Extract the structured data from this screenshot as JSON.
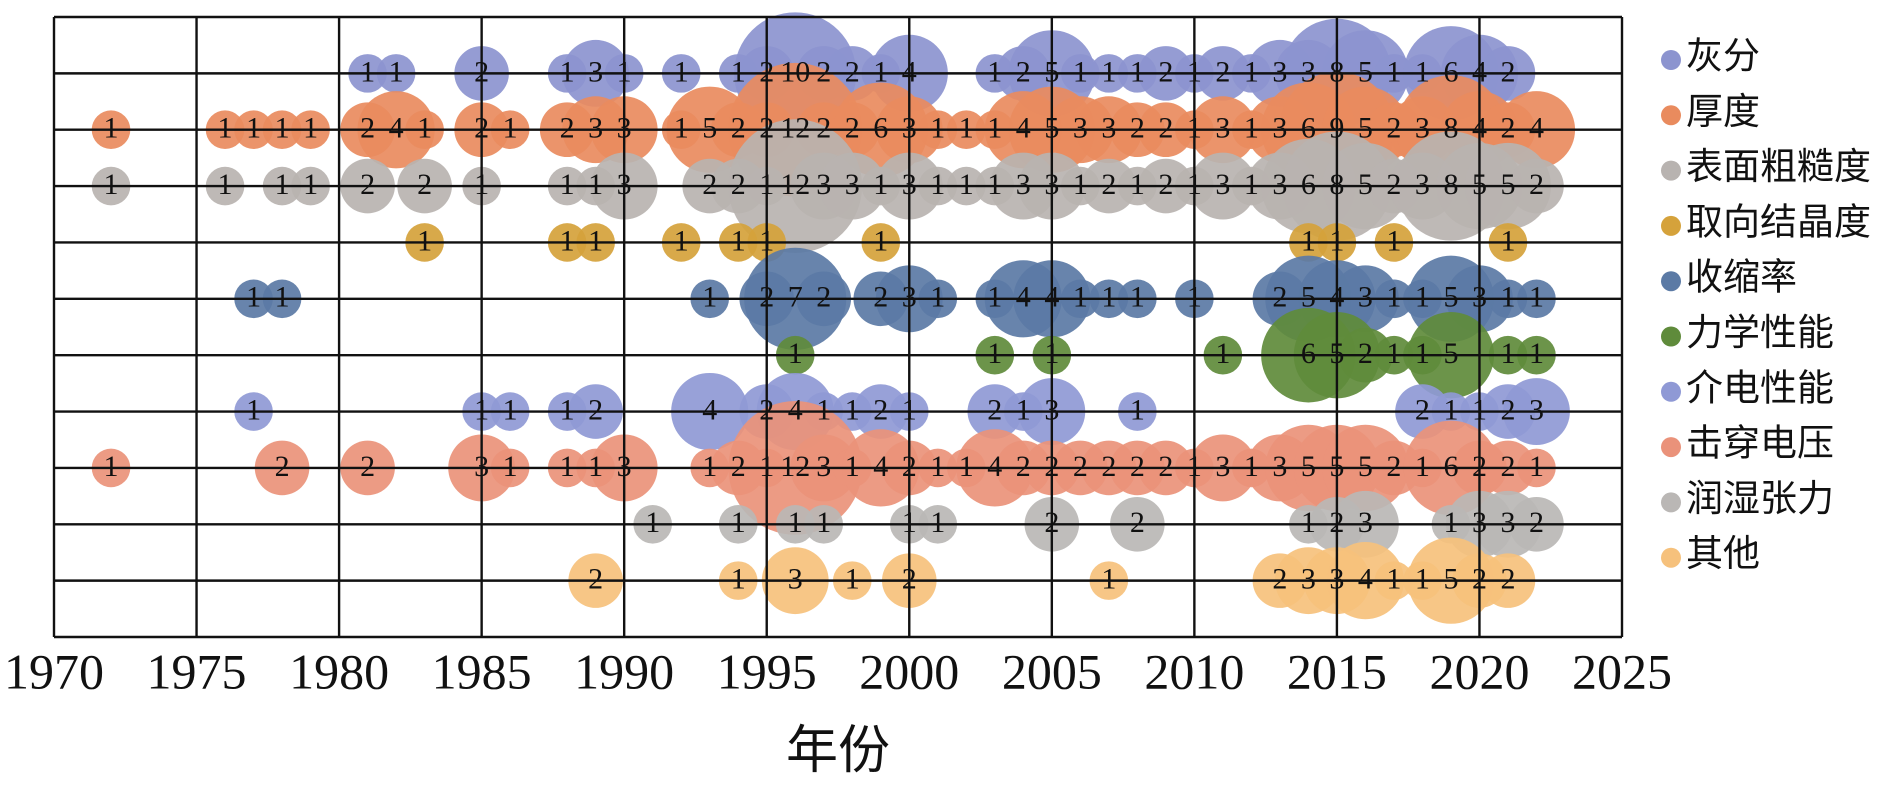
{
  "chart_data": {
    "type": "bubble",
    "x_label": "年份",
    "xlim": [
      1970,
      2025
    ],
    "xticks": [
      1970,
      1975,
      1980,
      1985,
      1990,
      1995,
      2000,
      2005,
      2010,
      2015,
      2020,
      2025
    ],
    "series": [
      {
        "name": "灰分",
        "color": "#8c94cf",
        "x": [
          1981,
          1982,
          1985,
          1988,
          1989,
          1990,
          1992,
          1994,
          1995,
          1996,
          1997,
          1998,
          1999,
          2000,
          2003,
          2004,
          2005,
          2006,
          2007,
          2008,
          2009,
          2010,
          2011,
          2012,
          2013,
          2014,
          2015,
          2016,
          2017,
          2018,
          2019,
          2020,
          2021
        ],
        "values": [
          1,
          1,
          2,
          1,
          3,
          1,
          1,
          1,
          2,
          10,
          2,
          2,
          1,
          4,
          1,
          2,
          5,
          1,
          1,
          1,
          2,
          1,
          2,
          1,
          3,
          3,
          8,
          5,
          1,
          1,
          6,
          4,
          2
        ]
      },
      {
        "name": "厚度",
        "color": "#e98b5e",
        "x": [
          1972,
          1976,
          1977,
          1978,
          1979,
          1981,
          1982,
          1983,
          1985,
          1986,
          1988,
          1989,
          1990,
          1992,
          1993,
          1994,
          1995,
          1996,
          1997,
          1998,
          1999,
          2000,
          2001,
          2002,
          2003,
          2004,
          2005,
          2006,
          2007,
          2008,
          2009,
          2010,
          2011,
          2012,
          2013,
          2014,
          2015,
          2016,
          2017,
          2018,
          2019,
          2020,
          2021,
          2022
        ],
        "values": [
          1,
          1,
          1,
          1,
          1,
          2,
          4,
          1,
          2,
          1,
          2,
          3,
          3,
          1,
          5,
          2,
          2,
          12,
          2,
          2,
          6,
          3,
          1,
          1,
          1,
          4,
          5,
          3,
          3,
          2,
          2,
          1,
          3,
          1,
          3,
          6,
          9,
          5,
          2,
          3,
          8,
          4,
          2,
          4
        ]
      },
      {
        "name": "表面粗糙度",
        "color": "#b8b3b0",
        "x": [
          1972,
          1976,
          1978,
          1979,
          1981,
          1983,
          1985,
          1988,
          1989,
          1990,
          1993,
          1994,
          1995,
          1996,
          1997,
          1998,
          1999,
          2000,
          2001,
          2002,
          2003,
          2004,
          2005,
          2006,
          2007,
          2008,
          2009,
          2010,
          2011,
          2012,
          2013,
          2014,
          2015,
          2016,
          2017,
          2018,
          2019,
          2020,
          2021,
          2022
        ],
        "values": [
          1,
          1,
          1,
          1,
          2,
          2,
          1,
          1,
          1,
          3,
          2,
          2,
          1,
          12,
          3,
          3,
          1,
          3,
          1,
          1,
          1,
          3,
          3,
          1,
          2,
          1,
          2,
          1,
          3,
          1,
          3,
          6,
          8,
          5,
          2,
          3,
          8,
          5,
          5,
          2
        ]
      },
      {
        "name": "取向结晶度",
        "color": "#d5a23b",
        "x": [
          1983,
          1988,
          1989,
          1992,
          1994,
          1995,
          1999,
          2014,
          2015,
          2017,
          2021
        ],
        "values": [
          1,
          1,
          1,
          1,
          1,
          1,
          1,
          1,
          1,
          1,
          1
        ]
      },
      {
        "name": "收缩率",
        "color": "#5b7aa5",
        "x": [
          1977,
          1978,
          1993,
          1995,
          1996,
          1997,
          1999,
          2000,
          2001,
          2003,
          2004,
          2005,
          2006,
          2007,
          2008,
          2010,
          2013,
          2014,
          2015,
          2016,
          2017,
          2018,
          2019,
          2020,
          2021,
          2022
        ],
        "values": [
          1,
          1,
          1,
          2,
          7,
          2,
          2,
          3,
          1,
          1,
          4,
          4,
          1,
          1,
          1,
          1,
          2,
          5,
          4,
          3,
          1,
          1,
          5,
          3,
          1,
          1
        ]
      },
      {
        "name": "力学性能",
        "color": "#5f8b3b",
        "x": [
          1996,
          2003,
          2005,
          2011,
          2014,
          2015,
          2016,
          2017,
          2018,
          2019,
          2021,
          2022
        ],
        "values": [
          1,
          1,
          1,
          1,
          6,
          5,
          2,
          1,
          1,
          5,
          1,
          1
        ]
      },
      {
        "name": "介电性能",
        "color": "#8f99d5",
        "x": [
          1977,
          1985,
          1986,
          1988,
          1989,
          1993,
          1995,
          1996,
          1997,
          1998,
          1999,
          2000,
          2003,
          2004,
          2005,
          2008,
          2018,
          2019,
          2020,
          2021,
          2022
        ],
        "values": [
          1,
          1,
          1,
          1,
          2,
          4,
          2,
          4,
          1,
          1,
          2,
          1,
          2,
          1,
          3,
          1,
          2,
          1,
          1,
          2,
          3
        ]
      },
      {
        "name": "击穿电压",
        "color": "#ea927a",
        "x": [
          1972,
          1978,
          1981,
          1985,
          1986,
          1988,
          1989,
          1990,
          1993,
          1994,
          1995,
          1996,
          1997,
          1998,
          1999,
          2000,
          2001,
          2002,
          2003,
          2004,
          2005,
          2006,
          2007,
          2008,
          2009,
          2010,
          2011,
          2012,
          2013,
          2014,
          2015,
          2016,
          2017,
          2018,
          2019,
          2020,
          2021,
          2022
        ],
        "values": [
          1,
          2,
          2,
          3,
          1,
          1,
          1,
          3,
          1,
          2,
          1,
          12,
          3,
          1,
          4,
          2,
          1,
          1,
          4,
          2,
          2,
          2,
          2,
          2,
          2,
          1,
          3,
          1,
          3,
          5,
          5,
          5,
          2,
          1,
          6,
          2,
          2,
          1
        ]
      },
      {
        "name": "润湿张力",
        "color": "#bab7b5",
        "x": [
          1991,
          1994,
          1996,
          1997,
          2000,
          2001,
          2005,
          2008,
          2014,
          2015,
          2016,
          2019,
          2020,
          2021,
          2022
        ],
        "values": [
          1,
          1,
          1,
          1,
          1,
          1,
          2,
          2,
          1,
          2,
          3,
          1,
          3,
          3,
          2
        ]
      },
      {
        "name": "其他",
        "color": "#f6c17c",
        "x": [
          1989,
          1994,
          1996,
          1998,
          2000,
          2007,
          2013,
          2014,
          2015,
          2016,
          2017,
          2018,
          2019,
          2020,
          2021
        ],
        "values": [
          2,
          1,
          3,
          1,
          2,
          1,
          2,
          3,
          3,
          4,
          1,
          1,
          5,
          2,
          2
        ]
      }
    ]
  }
}
